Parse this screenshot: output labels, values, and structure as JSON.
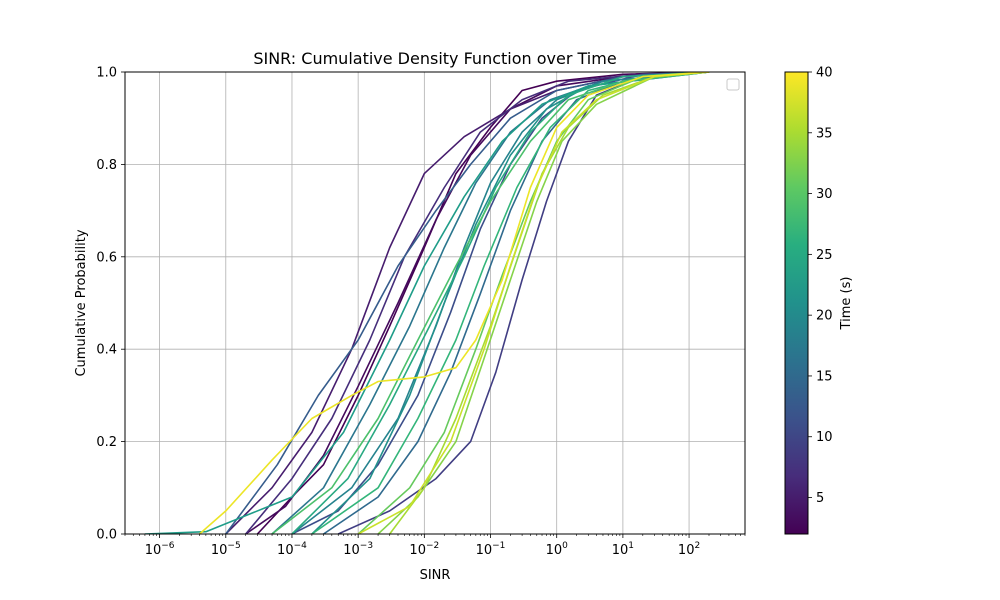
{
  "chart_data": {
    "type": "line",
    "title": "SINR: Cumulative Density Function over Time",
    "xlabel": "SINR",
    "ylabel": "Cumulative Probability",
    "xscale": "log",
    "xlim": [
      3e-07,
      700
    ],
    "ylim": [
      0,
      1
    ],
    "grid": true,
    "legend": "top-right (empty)",
    "x_ticks": [
      {
        "value": 1e-06,
        "base": "10",
        "exp": "−6"
      },
      {
        "value": 1e-05,
        "base": "10",
        "exp": "−5"
      },
      {
        "value": 0.0001,
        "base": "10",
        "exp": "−4"
      },
      {
        "value": 0.001,
        "base": "10",
        "exp": "−3"
      },
      {
        "value": 0.01,
        "base": "10",
        "exp": "−2"
      },
      {
        "value": 0.1,
        "base": "10",
        "exp": "−1"
      },
      {
        "value": 1,
        "base": "10",
        "exp": "0"
      },
      {
        "value": 10,
        "base": "10",
        "exp": "1"
      },
      {
        "value": 100,
        "base": "10",
        "exp": "2"
      }
    ],
    "y_ticks": [
      "0.0",
      "0.2",
      "0.4",
      "0.6",
      "0.8",
      "1.0"
    ],
    "colorbar": {
      "label": "Time (s)",
      "range": [
        2,
        40
      ],
      "colormap": "viridis",
      "ticks": [
        "5",
        "10",
        "15",
        "20",
        "25",
        "30",
        "35",
        "40"
      ]
    },
    "series": [
      {
        "time": 2,
        "points": [
          [
            3e-05,
            0
          ],
          [
            0.0001,
            0.08
          ],
          [
            0.0003,
            0.15
          ],
          [
            0.001,
            0.3
          ],
          [
            0.003,
            0.45
          ],
          [
            0.01,
            0.62
          ],
          [
            0.03,
            0.78
          ],
          [
            0.1,
            0.88
          ],
          [
            0.3,
            0.96
          ],
          [
            1,
            0.98
          ],
          [
            10,
            0.995
          ],
          [
            200,
            1
          ]
        ]
      },
      {
        "time": 3,
        "points": [
          [
            2e-05,
            0
          ],
          [
            8e-05,
            0.06
          ],
          [
            0.0003,
            0.17
          ],
          [
            0.001,
            0.32
          ],
          [
            0.004,
            0.5
          ],
          [
            0.015,
            0.68
          ],
          [
            0.05,
            0.82
          ],
          [
            0.2,
            0.92
          ],
          [
            1,
            0.97
          ],
          [
            10,
            0.99
          ],
          [
            200,
            1
          ]
        ]
      },
      {
        "time": 5,
        "points": [
          [
            1e-05,
            0
          ],
          [
            5e-05,
            0.1
          ],
          [
            0.0002,
            0.22
          ],
          [
            0.0008,
            0.4
          ],
          [
            0.003,
            0.62
          ],
          [
            0.01,
            0.78
          ],
          [
            0.04,
            0.86
          ],
          [
            0.2,
            0.92
          ],
          [
            1,
            0.96
          ],
          [
            10,
            0.99
          ],
          [
            200,
            1
          ]
        ]
      },
      {
        "time": 7,
        "points": [
          [
            2e-05,
            0
          ],
          [
            0.0001,
            0.12
          ],
          [
            0.0004,
            0.25
          ],
          [
            0.0015,
            0.42
          ],
          [
            0.005,
            0.6
          ],
          [
            0.02,
            0.75
          ],
          [
            0.07,
            0.87
          ],
          [
            0.3,
            0.94
          ],
          [
            1.5,
            0.98
          ],
          [
            20,
            0.995
          ],
          [
            200,
            1
          ]
        ]
      },
      {
        "time": 9,
        "points": [
          [
            0.0005,
            0
          ],
          [
            0.003,
            0.05
          ],
          [
            0.015,
            0.12
          ],
          [
            0.05,
            0.2
          ],
          [
            0.12,
            0.35
          ],
          [
            0.3,
            0.55
          ],
          [
            0.7,
            0.72
          ],
          [
            1.5,
            0.85
          ],
          [
            4,
            0.95
          ],
          [
            20,
            0.99
          ],
          [
            200,
            1
          ]
        ]
      },
      {
        "time": 11,
        "points": [
          [
            0.0001,
            0
          ],
          [
            0.0005,
            0.05
          ],
          [
            0.002,
            0.15
          ],
          [
            0.008,
            0.3
          ],
          [
            0.025,
            0.48
          ],
          [
            0.07,
            0.66
          ],
          [
            0.2,
            0.8
          ],
          [
            0.6,
            0.9
          ],
          [
            2,
            0.96
          ],
          [
            20,
            0.995
          ],
          [
            200,
            1
          ]
        ]
      },
      {
        "time": 13,
        "points": [
          [
            1e-05,
            0
          ],
          [
            6e-05,
            0.15
          ],
          [
            0.00025,
            0.3
          ],
          [
            0.001,
            0.42
          ],
          [
            0.004,
            0.58
          ],
          [
            0.015,
            0.7
          ],
          [
            0.05,
            0.8
          ],
          [
            0.2,
            0.9
          ],
          [
            1,
            0.96
          ],
          [
            10,
            0.99
          ],
          [
            200,
            1
          ]
        ]
      },
      {
        "time": 15,
        "points": [
          [
            0.0003,
            0
          ],
          [
            0.002,
            0.08
          ],
          [
            0.008,
            0.2
          ],
          [
            0.025,
            0.35
          ],
          [
            0.07,
            0.52
          ],
          [
            0.2,
            0.7
          ],
          [
            0.6,
            0.85
          ],
          [
            2,
            0.94
          ],
          [
            10,
            0.98
          ],
          [
            200,
            1
          ]
        ]
      },
      {
        "time": 17,
        "points": [
          [
            5e-05,
            0
          ],
          [
            0.0003,
            0.1
          ],
          [
            0.0015,
            0.28
          ],
          [
            0.006,
            0.45
          ],
          [
            0.02,
            0.62
          ],
          [
            0.06,
            0.76
          ],
          [
            0.2,
            0.87
          ],
          [
            0.8,
            0.94
          ],
          [
            5,
            0.98
          ],
          [
            200,
            1
          ]
        ]
      },
      {
        "time": 19,
        "points": [
          [
            0.0001,
            0
          ],
          [
            0.0008,
            0.1
          ],
          [
            0.004,
            0.25
          ],
          [
            0.015,
            0.45
          ],
          [
            0.04,
            0.62
          ],
          [
            0.1,
            0.76
          ],
          [
            0.3,
            0.87
          ],
          [
            1,
            0.94
          ],
          [
            5,
            0.98
          ],
          [
            200,
            1
          ]
        ]
      },
      {
        "time": 21,
        "points": [
          [
            0.0002,
            0
          ],
          [
            0.0015,
            0.12
          ],
          [
            0.006,
            0.3
          ],
          [
            0.02,
            0.5
          ],
          [
            0.06,
            0.67
          ],
          [
            0.2,
            0.82
          ],
          [
            0.7,
            0.92
          ],
          [
            3,
            0.97
          ],
          [
            200,
            1
          ]
        ]
      },
      {
        "time": 23,
        "points": [
          [
            6e-07,
            0
          ],
          [
            5e-06,
            0.005
          ],
          [
            0.0001,
            0.08
          ],
          [
            0.0006,
            0.22
          ],
          [
            0.003,
            0.42
          ],
          [
            0.01,
            0.58
          ],
          [
            0.04,
            0.73
          ],
          [
            0.15,
            0.85
          ],
          [
            0.6,
            0.93
          ],
          [
            3,
            0.97
          ],
          [
            200,
            1
          ]
        ]
      },
      {
        "time": 25,
        "points": [
          [
            0.0001,
            0
          ],
          [
            0.0007,
            0.12
          ],
          [
            0.003,
            0.28
          ],
          [
            0.012,
            0.45
          ],
          [
            0.04,
            0.6
          ],
          [
            0.12,
            0.75
          ],
          [
            0.4,
            0.87
          ],
          [
            1.5,
            0.95
          ],
          [
            10,
            0.99
          ],
          [
            200,
            1
          ]
        ]
      },
      {
        "time": 27,
        "points": [
          [
            0.0002,
            0
          ],
          [
            0.002,
            0.1
          ],
          [
            0.008,
            0.25
          ],
          [
            0.03,
            0.42
          ],
          [
            0.08,
            0.58
          ],
          [
            0.25,
            0.75
          ],
          [
            0.8,
            0.88
          ],
          [
            3,
            0.96
          ],
          [
            20,
            0.99
          ],
          [
            200,
            1
          ]
        ]
      },
      {
        "time": 29,
        "points": [
          [
            5e-05,
            0
          ],
          [
            0.0004,
            0.1
          ],
          [
            0.002,
            0.25
          ],
          [
            0.008,
            0.42
          ],
          [
            0.03,
            0.58
          ],
          [
            0.1,
            0.72
          ],
          [
            0.4,
            0.85
          ],
          [
            1.5,
            0.94
          ],
          [
            10,
            0.98
          ],
          [
            200,
            1
          ]
        ]
      },
      {
        "time": 31,
        "points": [
          [
            0.001,
            0
          ],
          [
            0.006,
            0.1
          ],
          [
            0.02,
            0.22
          ],
          [
            0.06,
            0.4
          ],
          [
            0.15,
            0.56
          ],
          [
            0.4,
            0.72
          ],
          [
            1,
            0.85
          ],
          [
            3,
            0.94
          ],
          [
            20,
            0.99
          ],
          [
            200,
            1
          ]
        ]
      },
      {
        "time": 33,
        "points": [
          [
            0.002,
            0
          ],
          [
            0.008,
            0.08
          ],
          [
            0.03,
            0.2
          ],
          [
            0.08,
            0.38
          ],
          [
            0.2,
            0.55
          ],
          [
            0.5,
            0.72
          ],
          [
            1.2,
            0.85
          ],
          [
            4,
            0.93
          ],
          [
            30,
            0.99
          ],
          [
            200,
            1
          ]
        ]
      },
      {
        "time": 35,
        "points": [
          [
            0.003,
            0
          ],
          [
            0.01,
            0.1
          ],
          [
            0.03,
            0.25
          ],
          [
            0.1,
            0.45
          ],
          [
            0.25,
            0.62
          ],
          [
            0.6,
            0.78
          ],
          [
            1.5,
            0.88
          ],
          [
            5,
            0.95
          ],
          [
            30,
            0.99
          ],
          [
            200,
            1
          ]
        ]
      },
      {
        "time": 37,
        "points": [
          [
            0.001,
            0
          ],
          [
            0.006,
            0.06
          ],
          [
            0.025,
            0.2
          ],
          [
            0.08,
            0.4
          ],
          [
            0.2,
            0.58
          ],
          [
            0.5,
            0.75
          ],
          [
            1.2,
            0.87
          ],
          [
            4,
            0.94
          ],
          [
            30,
            0.99
          ],
          [
            200,
            1
          ]
        ]
      },
      {
        "time": 39,
        "points": [
          [
            4e-06,
            0
          ],
          [
            1e-05,
            0.05
          ],
          [
            5e-05,
            0.16
          ],
          [
            0.0002,
            0.25
          ],
          [
            0.0008,
            0.3
          ],
          [
            0.002,
            0.33
          ],
          [
            0.01,
            0.34
          ],
          [
            0.03,
            0.36
          ],
          [
            0.06,
            0.42
          ],
          [
            0.15,
            0.55
          ],
          [
            0.4,
            0.75
          ],
          [
            1,
            0.88
          ],
          [
            3,
            0.95
          ],
          [
            20,
            0.99
          ],
          [
            200,
            1
          ]
        ]
      }
    ]
  }
}
